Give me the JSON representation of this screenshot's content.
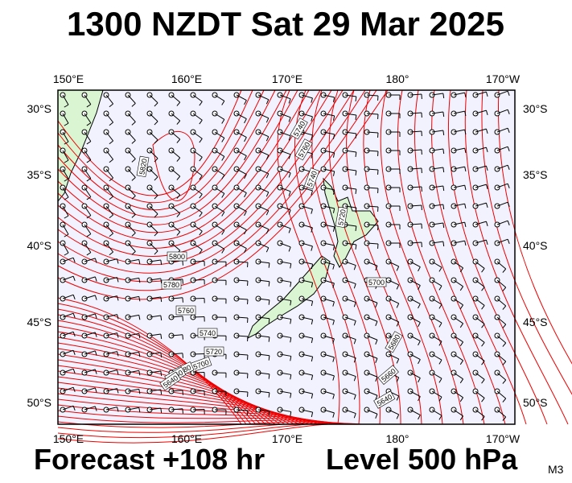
{
  "header": {
    "title": "1300 NZDT Sat 29 Mar 2025"
  },
  "map": {
    "top_axis": [
      "150°E",
      "160°E",
      "170°E",
      "180°",
      "170°W"
    ],
    "bottom_axis": [
      "150°E",
      "160°E",
      "170°E",
      "180°",
      "170°W"
    ],
    "left_axis": [
      "30°S",
      "35°S",
      "40°S",
      "45°S",
      "50°S"
    ],
    "right_axis": [
      "30°S",
      "35°S",
      "40°S",
      "45°S",
      "50°S"
    ],
    "contour_labels": [
      "5820",
      "5800",
      "5780",
      "5760",
      "5740",
      "5720",
      "5700",
      "5680",
      "5660",
      "5640",
      "5740",
      "5760",
      "5740",
      "5720",
      "5700",
      "5680",
      "5660",
      "5640"
    ]
  },
  "footer": {
    "forecast": "Forecast +108 hr",
    "level": "Level 500 hPa",
    "code": "M3"
  }
}
